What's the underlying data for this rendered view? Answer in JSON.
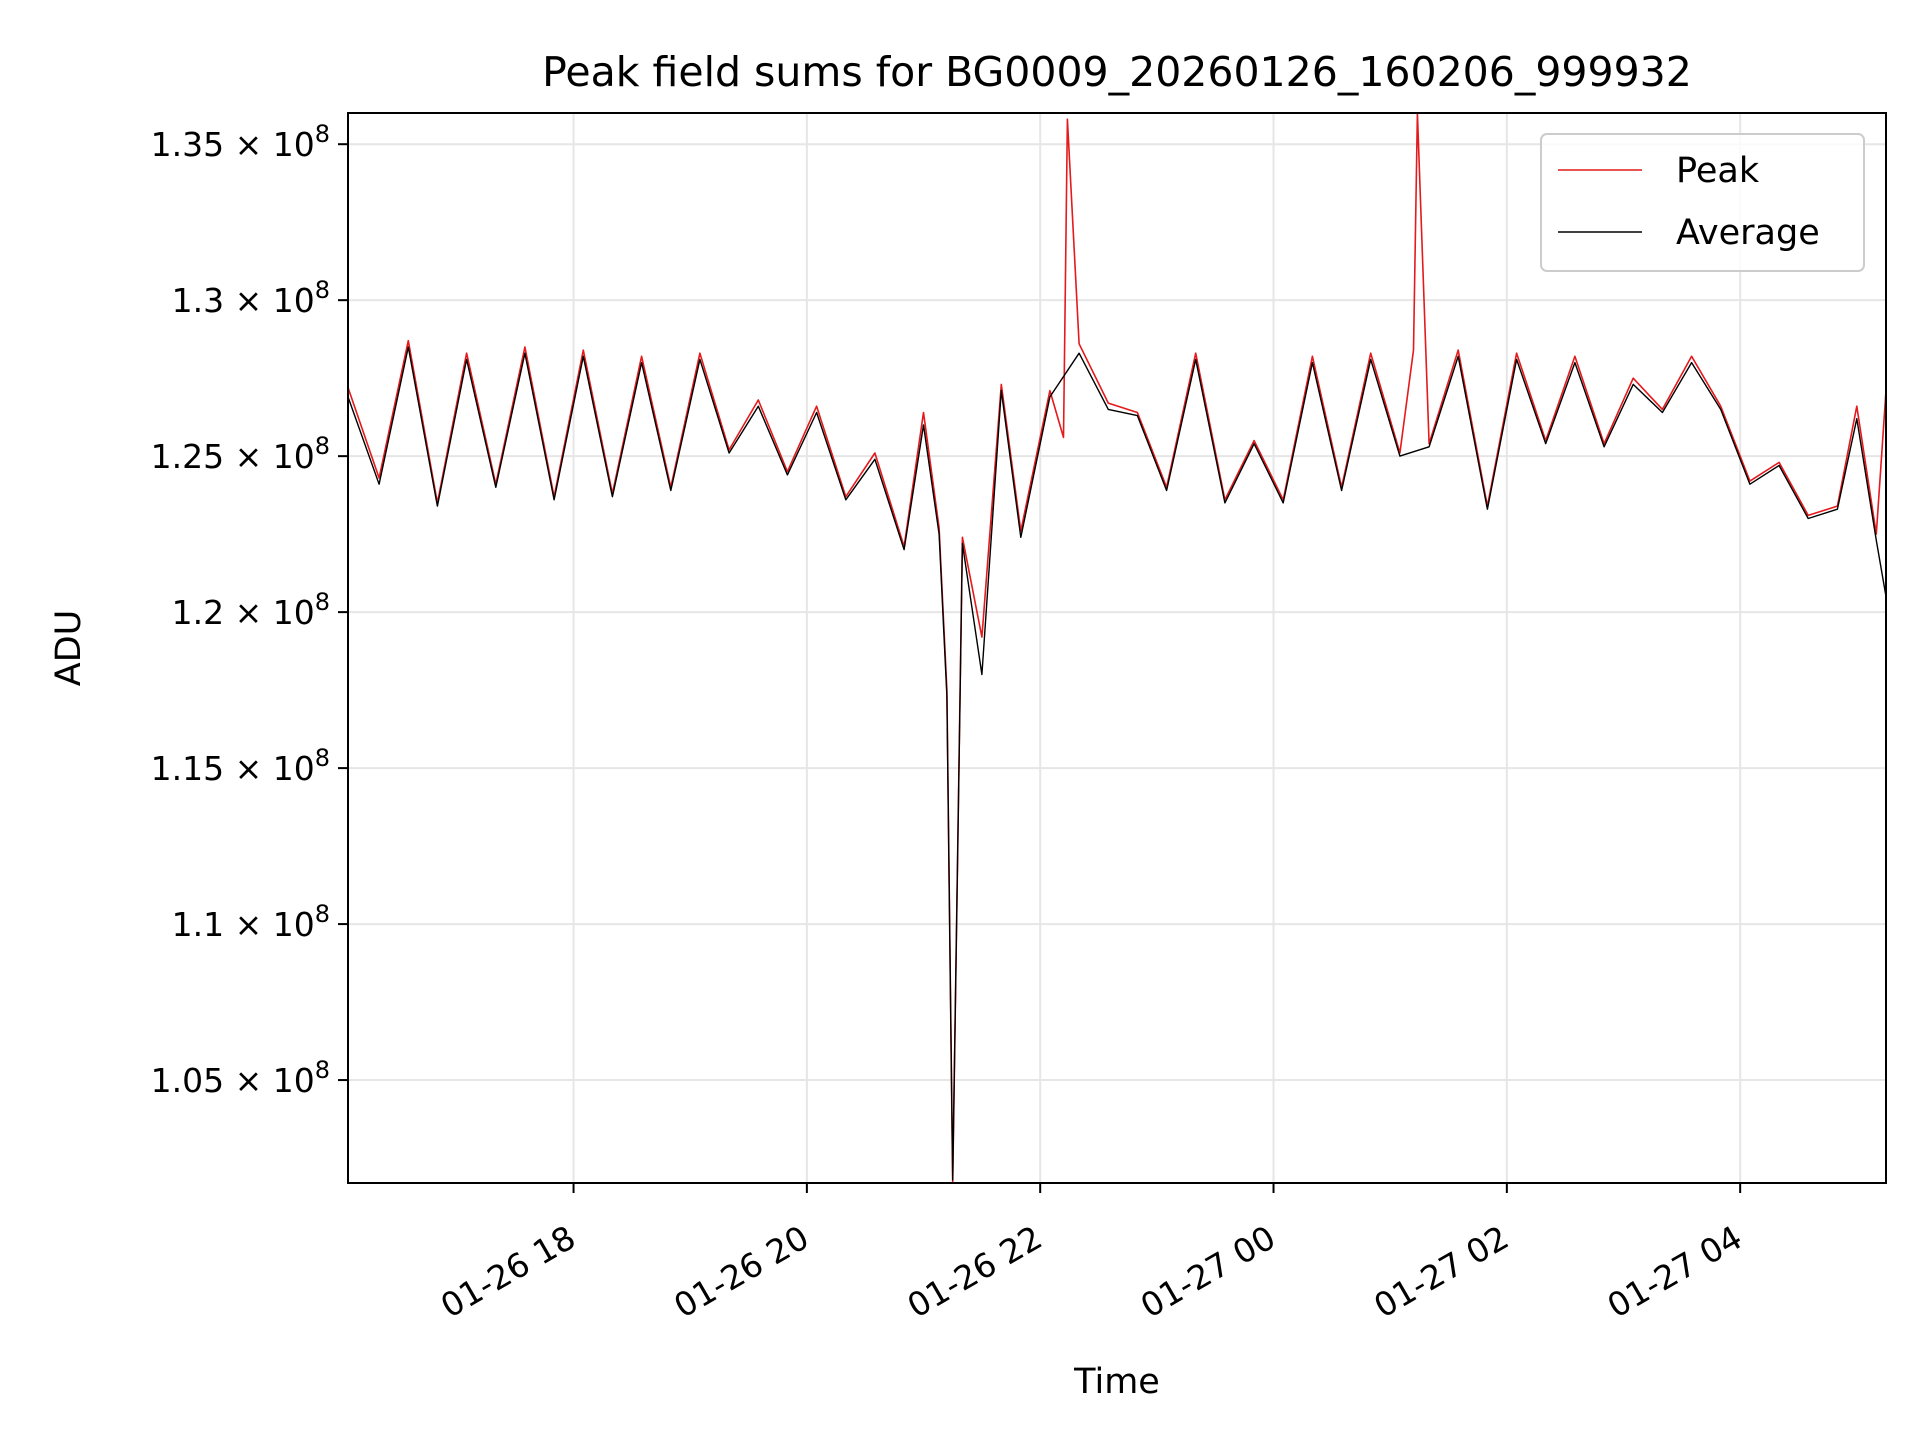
{
  "chart_data": {
    "type": "line",
    "title": "Peak field sums for BG0009_20260126_160206_999932",
    "xlabel": "Time",
    "ylabel": "ADU",
    "x_range": [
      "2026-01-26 16:04",
      "2026-01-27 05:15"
    ],
    "ylim": [
      101700000,
      136000000
    ],
    "x_ticks": [
      {
        "t": "2026-01-26 18:00",
        "label": "01-26 18"
      },
      {
        "t": "2026-01-26 20:00",
        "label": "01-26 20"
      },
      {
        "t": "2026-01-26 22:00",
        "label": "01-26 22"
      },
      {
        "t": "2026-01-27 00:00",
        "label": "01-27 00"
      },
      {
        "t": "2026-01-27 02:00",
        "label": "01-27 02"
      },
      {
        "t": "2026-01-27 04:00",
        "label": "01-27 04"
      }
    ],
    "y_ticks": [
      {
        "v": 105000000,
        "mant": "1.05"
      },
      {
        "v": 110000000,
        "mant": "1.1"
      },
      {
        "v": 115000000,
        "mant": "1.15"
      },
      {
        "v": 120000000,
        "mant": "1.2"
      },
      {
        "v": 125000000,
        "mant": "1.25"
      },
      {
        "v": 130000000,
        "mant": "1.3"
      },
      {
        "v": 135000000,
        "mant": "1.35"
      }
    ],
    "y_tick_suffix": "× 10",
    "y_tick_exponent": "8",
    "grid": true,
    "legend_position": "top-right",
    "series": [
      {
        "name": "Peak",
        "color": "#e41a1c",
        "x": [
          "2026-01-26 16:04",
          "2026-01-26 16:20",
          "2026-01-26 16:35",
          "2026-01-26 16:50",
          "2026-01-26 17:05",
          "2026-01-26 17:20",
          "2026-01-26 17:35",
          "2026-01-26 17:50",
          "2026-01-26 18:05",
          "2026-01-26 18:20",
          "2026-01-26 18:35",
          "2026-01-26 18:50",
          "2026-01-26 19:05",
          "2026-01-26 19:20",
          "2026-01-26 19:35",
          "2026-01-26 19:50",
          "2026-01-26 20:05",
          "2026-01-26 20:20",
          "2026-01-26 20:35",
          "2026-01-26 20:50",
          "2026-01-26 21:00",
          "2026-01-26 21:08",
          "2026-01-26 21:12",
          "2026-01-26 21:15",
          "2026-01-26 21:20",
          "2026-01-26 21:30",
          "2026-01-26 21:40",
          "2026-01-26 21:50",
          "2026-01-26 22:05",
          "2026-01-26 22:12",
          "2026-01-26 22:14",
          "2026-01-26 22:20",
          "2026-01-26 22:35",
          "2026-01-26 22:50",
          "2026-01-26 23:05",
          "2026-01-26 23:20",
          "2026-01-26 23:35",
          "2026-01-26 23:50",
          "2026-01-27 00:05",
          "2026-01-27 00:20",
          "2026-01-27 00:35",
          "2026-01-27 00:50",
          "2026-01-27 01:05",
          "2026-01-27 01:12",
          "2026-01-27 01:14",
          "2026-01-27 01:20",
          "2026-01-27 01:35",
          "2026-01-27 01:50",
          "2026-01-27 02:05",
          "2026-01-27 02:20",
          "2026-01-27 02:35",
          "2026-01-27 02:50",
          "2026-01-27 03:05",
          "2026-01-27 03:20",
          "2026-01-27 03:35",
          "2026-01-27 03:50",
          "2026-01-27 04:05",
          "2026-01-27 04:20",
          "2026-01-27 04:35",
          "2026-01-27 04:50",
          "2026-01-27 05:00",
          "2026-01-27 05:10",
          "2026-01-27 05:15"
        ],
        "y": [
          127200000,
          124300000,
          128700000,
          123500000,
          128300000,
          124100000,
          128500000,
          123700000,
          128400000,
          123800000,
          128200000,
          124000000,
          128300000,
          125200000,
          126800000,
          124500000,
          126600000,
          123700000,
          125100000,
          122100000,
          126400000,
          122700000,
          117500000,
          101700000,
          122400000,
          119200000,
          127300000,
          122600000,
          127100000,
          125600000,
          135800000,
          128600000,
          126700000,
          126400000,
          124000000,
          128300000,
          123600000,
          125500000,
          123600000,
          128200000,
          124000000,
          128300000,
          125100000,
          128400000,
          136000000,
          125400000,
          128400000,
          123400000,
          128300000,
          125500000,
          128200000,
          125400000,
          127500000,
          126500000,
          128200000,
          126600000,
          124200000,
          124800000,
          123100000,
          123400000,
          126600000,
          122500000,
          127100000
        ]
      },
      {
        "name": "Average",
        "color": "#000000",
        "x": [
          "2026-01-26 16:04",
          "2026-01-26 16:20",
          "2026-01-26 16:35",
          "2026-01-26 16:50",
          "2026-01-26 17:05",
          "2026-01-26 17:20",
          "2026-01-26 17:35",
          "2026-01-26 17:50",
          "2026-01-26 18:05",
          "2026-01-26 18:20",
          "2026-01-26 18:35",
          "2026-01-26 18:50",
          "2026-01-26 19:05",
          "2026-01-26 19:20",
          "2026-01-26 19:35",
          "2026-01-26 19:50",
          "2026-01-26 20:05",
          "2026-01-26 20:20",
          "2026-01-26 20:35",
          "2026-01-26 20:50",
          "2026-01-26 21:00",
          "2026-01-26 21:08",
          "2026-01-26 21:12",
          "2026-01-26 21:15",
          "2026-01-26 21:20",
          "2026-01-26 21:30",
          "2026-01-26 21:40",
          "2026-01-26 21:50",
          "2026-01-26 22:05",
          "2026-01-26 22:20",
          "2026-01-26 22:35",
          "2026-01-26 22:50",
          "2026-01-26 23:05",
          "2026-01-26 23:20",
          "2026-01-26 23:35",
          "2026-01-26 23:50",
          "2026-01-27 00:05",
          "2026-01-27 00:20",
          "2026-01-27 00:35",
          "2026-01-27 00:50",
          "2026-01-27 01:05",
          "2026-01-27 01:20",
          "2026-01-27 01:35",
          "2026-01-27 01:50",
          "2026-01-27 02:05",
          "2026-01-27 02:20",
          "2026-01-27 02:35",
          "2026-01-27 02:50",
          "2026-01-27 03:05",
          "2026-01-27 03:20",
          "2026-01-27 03:35",
          "2026-01-27 03:50",
          "2026-01-27 04:05",
          "2026-01-27 04:20",
          "2026-01-27 04:35",
          "2026-01-27 04:50",
          "2026-01-27 05:00",
          "2026-01-27 05:10",
          "2026-01-27 05:15"
        ],
        "y": [
          126900000,
          124100000,
          128500000,
          123400000,
          128100000,
          124000000,
          128300000,
          123600000,
          128200000,
          123700000,
          128000000,
          123900000,
          128100000,
          125100000,
          126600000,
          124400000,
          126400000,
          123600000,
          124900000,
          122000000,
          126000000,
          122500000,
          117300000,
          101800000,
          122200000,
          118000000,
          127100000,
          122400000,
          126900000,
          128300000,
          126500000,
          126300000,
          123900000,
          128100000,
          123500000,
          125400000,
          123500000,
          128000000,
          123900000,
          128100000,
          125000000,
          125300000,
          128200000,
          123300000,
          128100000,
          125400000,
          128000000,
          125300000,
          127300000,
          126400000,
          128000000,
          126500000,
          124100000,
          124700000,
          123000000,
          123300000,
          126200000,
          122300000,
          120500000
        ]
      }
    ]
  }
}
